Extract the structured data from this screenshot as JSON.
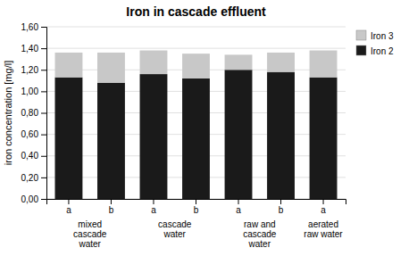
{
  "chart_data": {
    "type": "bar",
    "stacked": true,
    "title": "Iron in cascade effluent",
    "y_label": "iron concentration [mg/l]",
    "categories": [
      "a",
      "b",
      "a",
      "b",
      "a",
      "b",
      "a"
    ],
    "groups": [
      "mixed\ncascade\nwater",
      "mixed\ncascade\nwater",
      "cascade\nwater",
      "cascade\nwater",
      "raw and\ncascade\nwater",
      "raw and\ncascade\nwater",
      "aerated\nraw water"
    ],
    "series": [
      {
        "name": "Iron 2",
        "color": "#1a1a1a",
        "values": [
          1.13,
          1.08,
          1.16,
          1.12,
          1.2,
          1.18,
          1.13
        ]
      },
      {
        "name": "Iron 3",
        "color": "#c8c8c8",
        "values": [
          0.23,
          0.28,
          0.22,
          0.23,
          0.14,
          0.18,
          0.25
        ]
      }
    ],
    "ylim": [
      0,
      1.6
    ],
    "yticks": [
      {
        "value": 0,
        "label": "0,00"
      },
      {
        "value": 0.2,
        "label": "0,20"
      },
      {
        "value": 0.4,
        "label": "0,40"
      },
      {
        "value": 0.6,
        "label": "0,60"
      },
      {
        "value": 0.8,
        "label": "0,80"
      },
      {
        "value": 1.0,
        "label": "1,00"
      },
      {
        "value": 1.2,
        "label": "1,20"
      },
      {
        "value": 1.4,
        "label": "1,40"
      },
      {
        "value": 1.6,
        "label": "1,60"
      }
    ],
    "grid": true,
    "legend": "upper right"
  }
}
